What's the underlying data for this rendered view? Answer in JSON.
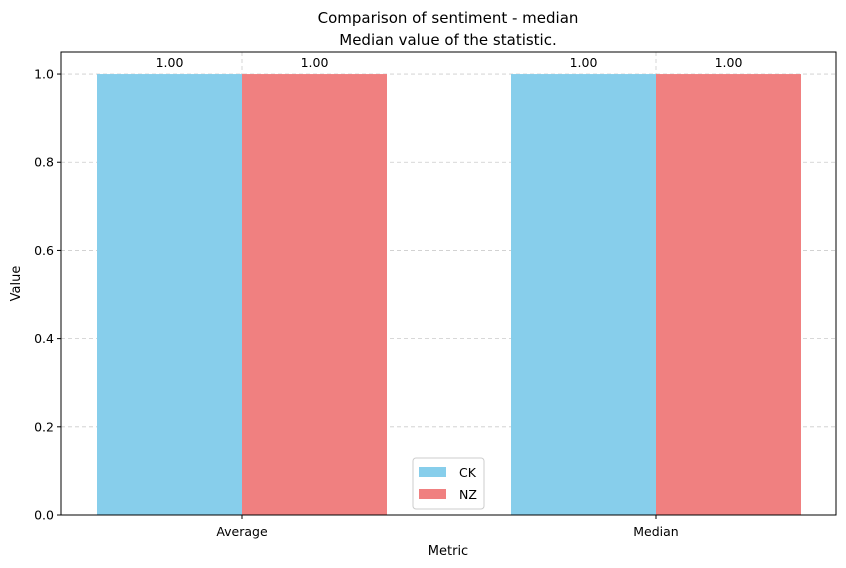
{
  "chart_data": {
    "type": "bar",
    "title": "Comparison of sentiment - median",
    "subtitle": "Median value of the statistic.",
    "xlabel": "Metric",
    "ylabel": "Value",
    "categories": [
      "Average",
      "Median"
    ],
    "series": [
      {
        "name": "CK",
        "values": [
          1.0,
          1.0
        ],
        "color": "#87CEEB"
      },
      {
        "name": "NZ",
        "values": [
          1.0,
          1.0
        ],
        "color": "#F08080"
      }
    ],
    "value_labels": [
      [
        "1.00",
        "1.00"
      ],
      [
        "1.00",
        "1.00"
      ]
    ],
    "ylim": [
      0,
      1.05
    ],
    "yticks": [
      0.0,
      0.2,
      0.4,
      0.6,
      0.8,
      1.0
    ],
    "ytick_labels": [
      "0.0",
      "0.2",
      "0.4",
      "0.6",
      "0.8",
      "1.0"
    ],
    "grid": true,
    "grid_style": "dashed",
    "legend_position": "lower center"
  }
}
